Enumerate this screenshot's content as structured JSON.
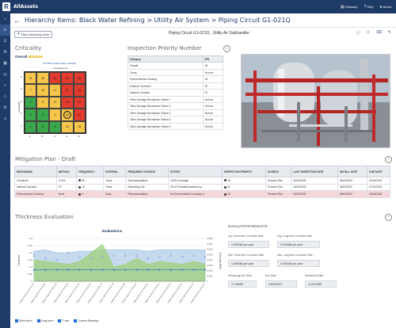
{
  "app": {
    "title": "AllAssets",
    "logo": "R"
  },
  "top_nav": [
    {
      "icon": "glossary-icon",
      "glyph": "▤",
      "label": "Glossary"
    },
    {
      "icon": "help-icon",
      "glyph": "?",
      "label": "Help"
    },
    {
      "icon": "user-icon",
      "glyph": "●",
      "label": "About"
    }
  ],
  "sidebar": [
    {
      "icon": "home-icon",
      "glyph": "⌂"
    },
    {
      "icon": "hierarchy-icon",
      "glyph": "≡"
    },
    {
      "icon": "list-icon",
      "glyph": "☰"
    },
    {
      "icon": "wrench-icon",
      "glyph": "⚒"
    },
    {
      "icon": "grid-icon",
      "glyph": "▦"
    },
    {
      "icon": "globe-icon",
      "glyph": "◎"
    },
    {
      "icon": "document-icon",
      "glyph": "□"
    },
    {
      "icon": "layers-icon",
      "glyph": "◇"
    },
    {
      "icon": "settings-icon",
      "glyph": "⚙"
    },
    {
      "icon": "key-icon",
      "glyph": "⚷"
    }
  ],
  "breadcrumb": "Hierarchy Items: Black Water Refining > Utility Air System > Piping Circuit G1-021Q",
  "actions": {
    "new_item": "New Hierarchy Item",
    "item_title": "Piping Circuit G1-021Q , Utility Air Subhandler"
  },
  "criticality": {
    "title": "Criticality",
    "overall_label": "Overall",
    "overall_value": "MEDIUM",
    "subtitle": "API 581 RI Risk Matrix (default)",
    "consequence_label": "Consequence",
    "probability_label": "Probability",
    "row_labels": [
      "5",
      "4",
      "3",
      "2",
      "1"
    ],
    "col_labels": [
      "A",
      "B",
      "C",
      "D",
      "E"
    ],
    "cells": [
      [
        "11",
        "16",
        "20",
        "23",
        "25"
      ],
      [
        "7",
        "12",
        "17",
        "21",
        "24"
      ],
      [
        "4",
        "8",
        "13",
        "18",
        "22"
      ],
      [
        "2",
        "5",
        "9",
        "14",
        "19"
      ],
      [
        "1",
        "3",
        "6",
        "10",
        "15"
      ]
    ],
    "colors": [
      [
        "#f6c64a",
        "#f6c64a",
        "#e23b2e",
        "#e23b2e",
        "#e23b2e"
      ],
      [
        "#f6c64a",
        "#f6c64a",
        "#f6c64a",
        "#e23b2e",
        "#e23b2e"
      ],
      [
        "#3aa84a",
        "#f6c64a",
        "#f6c64a",
        "#e23b2e",
        "#e23b2e"
      ],
      [
        "#3aa84a",
        "#3aa84a",
        "#f6c64a",
        "#f6c64a",
        "#e23b2e"
      ],
      [
        "#3aa84a",
        "#3aa84a",
        "#3aa84a",
        "#f6c64a",
        "#f6c64a"
      ]
    ],
    "highlight": "14"
  },
  "ipn": {
    "title": "Inspection Priority Number",
    "headers": [
      "Category",
      "IPN"
    ],
    "rows": [
      [
        "Overall",
        "18"
      ],
      [
        "Creep",
        "Not set"
      ],
      [
        "Environmental Cracking",
        "18"
      ],
      [
        "External Corrosion",
        "22"
      ],
      [
        "Internal Corrosion",
        "22"
      ],
      [
        "Other Damage Mechanism Failure 1",
        "Not set"
      ],
      [
        "Other Damage Mechanism Failure 2",
        "Not set"
      ],
      [
        "Other Damage Mechanism Failure 3",
        "Not set"
      ],
      [
        "Other Damage Mechanism Failure 4",
        "Not set"
      ],
      [
        "Other Damage Mechanism Failure 5",
        "Not set"
      ]
    ]
  },
  "mitigation": {
    "title": "Mitigation Plan - Draft",
    "headers": [
      "MECHANISM",
      "METHOD",
      "FREQUENCY",
      "INTERVAL",
      "FREQUENCY SOURCE",
      "EXTENT",
      "INSPECTION PRIORITY",
      "SOURCE",
      "LAST INSPECTION DATE",
      "INSTALL DATE",
      "DUE DATE"
    ],
    "rows": [
      {
        "cells": [
          "Combined",
          "VI-Ext",
          "60",
          "Years",
          "Recommendation",
          "100% Coverage",
          "18",
          "Process Pipe",
          "06/03/2000",
          "06/03/2000",
          "02/01/2030"
        ],
        "dot": "#777777",
        "hl": false
      },
      {
        "cells": [
          "Internal Corrosion",
          "UT",
          "10",
          "Years",
          "Remaining Life",
          "5% of Potential locations by...",
          "22",
          "Process Pipe",
          "06/03/2000",
          "06/03/2000",
          "01/31/2034"
        ],
        "dot": "#777777",
        "hl": false
      },
      {
        "cells": [
          "Environmental Cracking",
          "None",
          "0",
          "Days",
          "Recommendation",
          "No Environmental Cracking In...",
          "18",
          "Process Pipe",
          "06/03/2000",
          "06/03/2000",
          "06/03/2000"
        ],
        "dot": "#e23b2e",
        "hl": true
      }
    ]
  },
  "thickness": {
    "title": "Thickness Evaluation",
    "chart_title": "Evaluations",
    "ylabel_left": "Thickness",
    "ylabel_right": "Corrosion Rate",
    "legend": [
      "Short-term",
      "Long-term",
      "T-min",
      "Current Reading"
    ]
  },
  "chart_data": {
    "type": "area",
    "title": "Evaluations",
    "x": [
      "Piping Circuit G1-021Q-01",
      "Piping Circuit G1-021Q-02",
      "Piping Circuit G1-021Q-03",
      "Piping Circuit G1-021Q-04",
      "Piping Circuit G1-021Q-05",
      "Piping Circuit G1-021Q-06",
      "Piping Circuit G1-021Q-07",
      "Piping Circuit G1-021Q-08",
      "Piping Circuit G1-021Q-09",
      "Piping Circuit G1-021Q-10",
      "Piping Circuit G1-021Q-11",
      "Piping Circuit G1-021Q-12",
      "Piping Circuit G1-021Q-13",
      "Piping Circuit G1-021Q-14",
      "Piping Circuit G1-021Q-15",
      "Piping Circuit G1-021Q-16"
    ],
    "ylim_left": [
      0,
      0.3
    ],
    "ylim_right": [
      0,
      0.008
    ],
    "yticks_left": [
      "0.3",
      "0.25",
      "0.2",
      "0.15",
      "0.1",
      "0.05",
      "0"
    ],
    "yticks_right": [
      "0.008",
      "0.007",
      "0.006",
      "0.005",
      "0.004",
      "0.003",
      "0.002",
      "0.001",
      "0"
    ],
    "series": [
      {
        "name": "Long-term",
        "color": "#8fb8e0",
        "values": [
          0.21,
          0.22,
          0.2,
          0.2,
          0.21,
          0.21,
          0.22,
          0.22,
          0.22,
          0.22,
          0.21,
          0.22,
          0.22,
          0.22,
          0.22,
          0.22
        ]
      },
      {
        "name": "Short-term",
        "color": "#9fcf7a",
        "values": [
          0.15,
          0.14,
          0.13,
          0.12,
          0.14,
          0.2,
          0.26,
          0.1,
          0.12,
          0.16,
          0.12,
          0.14,
          0.13,
          0.12,
          0.14,
          0.12
        ]
      },
      {
        "name": "T-min",
        "color": "#2a6fcf",
        "values": [
          0.08,
          0.08,
          0.08,
          0.08,
          0.08,
          0.08,
          0.08,
          0.08,
          0.08,
          0.08,
          0.08,
          0.08,
          0.08,
          0.08,
          0.08,
          0.08
        ]
      },
      {
        "name": "Current Reading",
        "color": "#2a6fcf",
        "values": [
          0.18,
          0.16,
          0.15,
          0.2,
          0.17,
          0.16,
          0.17,
          0.18,
          0.18,
          0.18,
          0.16,
          0.17,
          0.18,
          0.17,
          0.18,
          0.17
        ]
      }
    ]
  },
  "evaluation": {
    "title": "EVALUATION RESULTS",
    "fields": [
      {
        "label": "Avg. Short-term Corrosion Rate",
        "value": "0.003466 per year"
      },
      {
        "label": "Avg. Long-term Corrosion Rate",
        "value": "0.003466 per year"
      },
      {
        "label": "Max. Short-term Corrosion Rate",
        "value": "0.005466 per year"
      },
      {
        "label": "Max. Long-term Corrosion Rate",
        "value": "0.005466 per year"
      },
      {
        "label": "Remaining Life Years",
        "value": "27.66005"
      },
      {
        "label": "Due Date",
        "value": "03/20/2027"
      },
      {
        "label": "Retirement Date",
        "value": "11/22/2055"
      }
    ]
  }
}
